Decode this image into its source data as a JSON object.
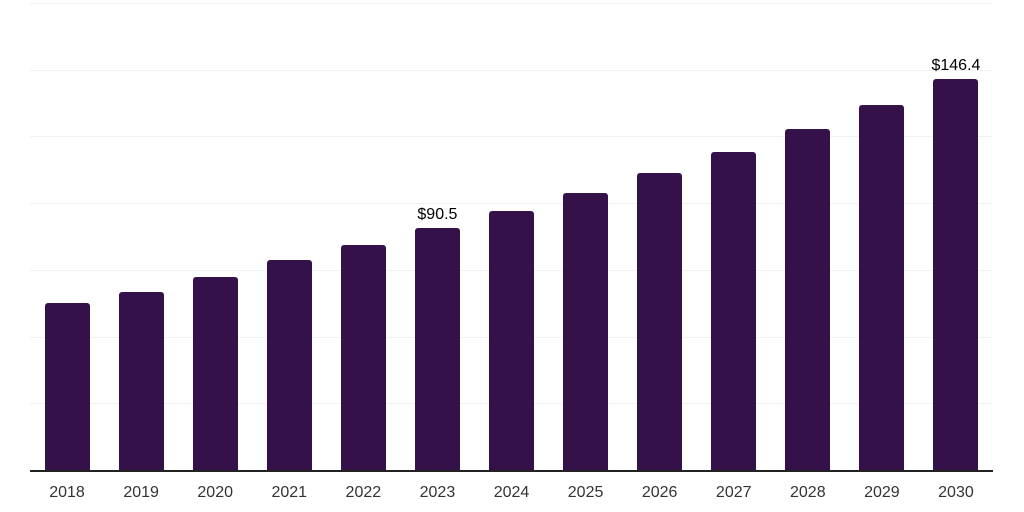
{
  "chart_data": {
    "type": "bar",
    "title": "",
    "xlabel": "",
    "ylabel": "",
    "categories": [
      "2018",
      "2019",
      "2020",
      "2021",
      "2022",
      "2023",
      "2024",
      "2025",
      "2026",
      "2027",
      "2028",
      "2029",
      "2030"
    ],
    "values": [
      62.7,
      66.6,
      72.3,
      78.6,
      84.4,
      90.5,
      96.9,
      103.8,
      111.2,
      119.1,
      127.6,
      136.7,
      146.4
    ],
    "data_labels": {
      "2023": "$90.5",
      "2030": "$146.4"
    },
    "ylim": [
      0,
      175
    ],
    "grid_step": 25,
    "grid": true,
    "legend": false,
    "y_axis_labels_visible": false,
    "colors": {
      "bar": "#351149",
      "grid_line": "#f2f2f2",
      "axis_line": "#222222",
      "tick_label": "#333333",
      "data_label": "#000000",
      "background": "#ffffff"
    }
  }
}
